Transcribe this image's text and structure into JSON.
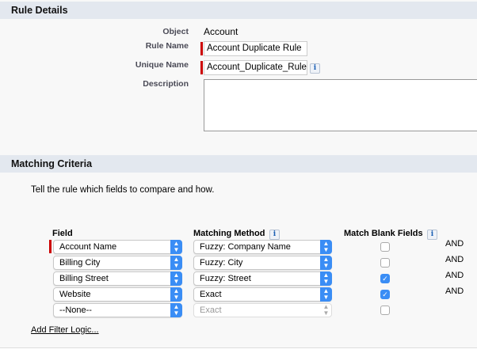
{
  "rule_details": {
    "title": "Rule Details",
    "object_label": "Object",
    "object_value": "Account",
    "rule_name_label": "Rule Name",
    "rule_name": "Account Duplicate Rule",
    "unique_name_label": "Unique Name",
    "unique_name": "Account_Duplicate_Rule",
    "description_label": "Description",
    "description": "",
    "info_icon": "i"
  },
  "matching": {
    "title": "Matching Criteria",
    "instructions": "Tell the rule which fields to compare and how.",
    "col_field": "Field",
    "col_method": "Matching Method",
    "col_blank": "Match Blank Fields",
    "info_icon": "i",
    "rows": [
      {
        "field": "Account Name",
        "method": "Fuzzy: Company Name",
        "blank": false,
        "logic": "AND"
      },
      {
        "field": "Billing City",
        "method": "Fuzzy: City",
        "blank": false,
        "logic": "AND"
      },
      {
        "field": "Billing Street",
        "method": "Fuzzy: Street",
        "blank": true,
        "logic": "AND"
      },
      {
        "field": "Website",
        "method": "Exact",
        "blank": true,
        "logic": "AND"
      },
      {
        "field": "--None--",
        "method": "Exact",
        "blank": false,
        "logic": ""
      }
    ],
    "add_filter_logic": "Add Filter Logic..."
  },
  "colors": {
    "required": "#cc0000",
    "accent": "#3a8df5",
    "header_bg": "#e3e8ef"
  }
}
